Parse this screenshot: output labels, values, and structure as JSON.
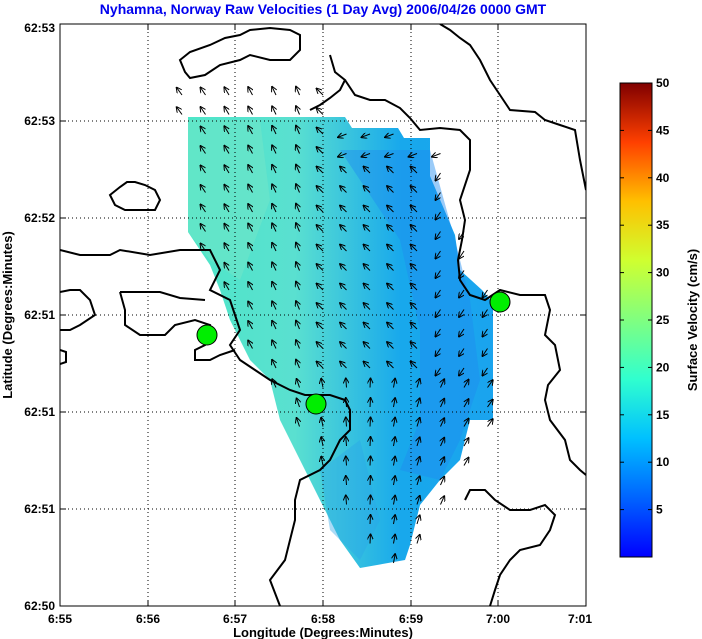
{
  "chart_data": {
    "type": "quiver-map",
    "title": "Nyhamna, Norway Raw Velocities (1 Day Avg) 2006/04/26 0000 GMT",
    "xlabel": "Longitude (Degrees:Minutes)",
    "ylabel": "Latitude (Degrees:Minutes)",
    "x_tick_labels": [
      "6:55",
      "6:56",
      "6:57",
      "6:58",
      "6:59",
      "7:00",
      "7:01"
    ],
    "y_tick_labels": [
      "62:53",
      "62:53",
      "62:52",
      "62:51",
      "62:51",
      "62:51",
      "62:50"
    ],
    "grid": true,
    "colorbar": {
      "label": "Surface Velocity (cm/s)",
      "ticks": [
        5,
        10,
        15,
        20,
        25,
        30,
        35,
        40,
        45,
        50
      ],
      "range": [
        0,
        50
      ],
      "colormap": "jet",
      "placement": "right"
    },
    "stations": [
      {
        "lon": 6.945,
        "lat": 0.65,
        "color": "#00ee00"
      },
      {
        "lon": 6.965,
        "lat": 0.48,
        "color": "#00ee00"
      },
      {
        "lon": 7.0,
        "lat": 0.695,
        "color": "#00ee00"
      }
    ],
    "coastline_color": "#000000"
  }
}
